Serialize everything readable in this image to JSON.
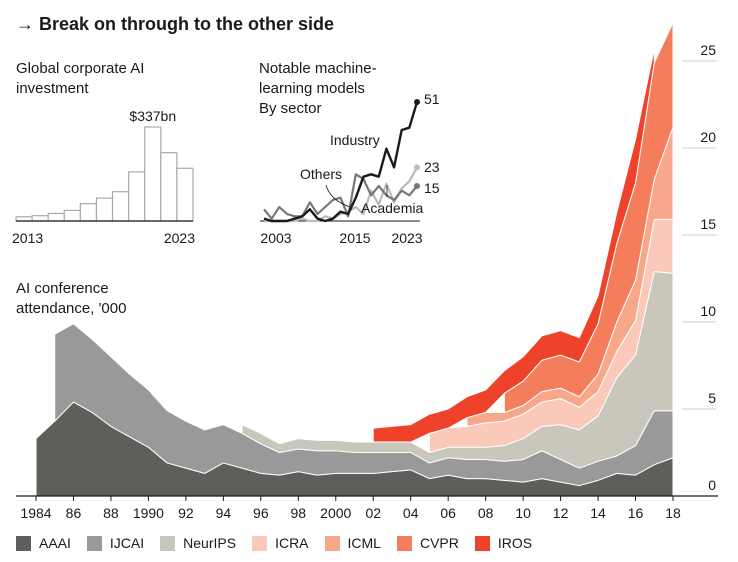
{
  "header": {
    "title": "→ Break on through to the other side"
  },
  "chart_data": [
    {
      "type": "bar",
      "title": "Global corporate AI investment",
      "categories": [
        "2013",
        "2014",
        "2015",
        "2016",
        "2017",
        "2018",
        "2019",
        "2020",
        "2021",
        "2022",
        "2023"
      ],
      "values": [
        15,
        19,
        27,
        38,
        62,
        82,
        105,
        176,
        337,
        245,
        189
      ],
      "annotation": "$337bn",
      "xtick_labels": [
        "2013",
        "2023"
      ],
      "units": "$bn"
    },
    {
      "type": "line",
      "title": "Notable machine-learning models",
      "subtitle": "By sector",
      "x": [
        2003,
        2004,
        2005,
        2006,
        2007,
        2008,
        2009,
        2010,
        2011,
        2012,
        2013,
        2014,
        2015,
        2016,
        2017,
        2018,
        2019,
        2020,
        2021,
        2022,
        2023
      ],
      "series": [
        {
          "name": "Industry",
          "color": "#1a1a1a",
          "end_label": "51",
          "values": [
            1,
            0,
            0,
            0,
            1,
            2,
            5,
            1,
            0,
            1,
            4,
            3,
            10,
            19,
            20,
            19,
            31,
            23,
            39,
            40,
            51
          ]
        },
        {
          "name": "Academia",
          "color": "#777777",
          "end_label": "15",
          "values": [
            5,
            1,
            6,
            3,
            2,
            2,
            8,
            3,
            6,
            9,
            10,
            2,
            20,
            18,
            11,
            15,
            11,
            9,
            13,
            11,
            15
          ]
        },
        {
          "name": "Others",
          "color": "#bbbbbb",
          "end_label": "23",
          "values": [
            0,
            0,
            0,
            0,
            0,
            1,
            0,
            0,
            2,
            1,
            3,
            4,
            6,
            3,
            13,
            7,
            16,
            8,
            14,
            17,
            23
          ]
        }
      ],
      "xtick_labels": [
        "2003",
        "2015",
        "2023"
      ],
      "annotations": [
        "Industry",
        "Others",
        "Academia"
      ]
    },
    {
      "type": "area",
      "title": "AI conference attendance, '000",
      "stacked": true,
      "ylim": [
        0,
        27
      ],
      "yticks": [
        0,
        5,
        10,
        15,
        20,
        25
      ],
      "x": [
        1984,
        1985,
        1986,
        1987,
        1988,
        1989,
        1990,
        1991,
        1992,
        1993,
        1994,
        1995,
        1996,
        1997,
        1998,
        1999,
        2000,
        2001,
        2002,
        2003,
        2004,
        2005,
        2006,
        2007,
        2008,
        2009,
        2010,
        2011,
        2012,
        2013,
        2014,
        2015,
        2016,
        2017,
        2018
      ],
      "xtick_labels": [
        "1984",
        "86",
        "88",
        "1990",
        "92",
        "94",
        "96",
        "98",
        "2000",
        "02",
        "04",
        "06",
        "08",
        "10",
        "12",
        "14",
        "16",
        "18"
      ],
      "series": [
        {
          "name": "AAAI",
          "color": "#5f5e5b",
          "values": [
            3.3,
            4.3,
            5.4,
            4.8,
            4.0,
            3.4,
            2.8,
            1.9,
            1.6,
            1.3,
            1.9,
            1.6,
            1.3,
            1.2,
            1.4,
            1.2,
            1.3,
            1.3,
            1.3,
            1.4,
            1.5,
            1.0,
            1.2,
            1.0,
            1.0,
            0.9,
            0.8,
            1.0,
            0.8,
            0.6,
            0.9,
            1.3,
            1.2,
            1.8,
            2.2
          ]
        },
        {
          "name": "IJCAI",
          "color": "#999999",
          "values": [
            0,
            5.0,
            4.5,
            4.2,
            4.0,
            3.6,
            3.3,
            3.0,
            2.7,
            2.5,
            2.2,
            2.0,
            1.7,
            1.3,
            1.3,
            1.4,
            1.3,
            1.2,
            1.2,
            1.1,
            1.0,
            0.9,
            1.0,
            1.1,
            1.1,
            1.1,
            1.3,
            1.6,
            1.3,
            1.0,
            1.1,
            1.0,
            1.7,
            3.1,
            2.7
          ]
        },
        {
          "name": "NeurIPS",
          "color": "#c9c7bc",
          "values": [
            0,
            0,
            0,
            0,
            0,
            0,
            0,
            0,
            0,
            0,
            0,
            0.5,
            0.6,
            0.5,
            0.6,
            0.6,
            0.6,
            0.6,
            0.6,
            0.6,
            0.6,
            0.6,
            0.6,
            0.7,
            0.7,
            0.9,
            1.2,
            1.4,
            2.0,
            2.2,
            2.6,
            4.5,
            5.2,
            8.0,
            7.9
          ]
        },
        {
          "name": "ICRA",
          "color": "#fbc9b9",
          "values": [
            0,
            0,
            0,
            0,
            0,
            0,
            0,
            0,
            0,
            0,
            0,
            0,
            0,
            0,
            0,
            0,
            0,
            0,
            0,
            0,
            0,
            1.1,
            1.1,
            1.2,
            1.4,
            1.4,
            1.4,
            1.4,
            1.5,
            1.3,
            1.4,
            1.5,
            2.0,
            3.0,
            3.1
          ]
        },
        {
          "name": "ICML",
          "color": "#f7a78a",
          "values": [
            0,
            0,
            0,
            0,
            0,
            0,
            0,
            0,
            0,
            0,
            0,
            0,
            0,
            0,
            0,
            0,
            0,
            0,
            0,
            0,
            0,
            0,
            0,
            0.5,
            0.6,
            0.5,
            0.5,
            0.6,
            0.6,
            0.6,
            1.0,
            1.7,
            2.3,
            2.3,
            5.3
          ]
        },
        {
          "name": "CVPR",
          "color": "#f47d5c",
          "values": [
            0,
            0,
            0,
            0,
            0,
            0,
            0,
            0,
            0,
            0,
            0,
            0,
            0,
            0,
            0,
            0,
            0,
            0,
            0,
            0,
            0,
            0,
            0,
            0,
            0,
            1.1,
            1.4,
            1.8,
            1.9,
            2.0,
            2.9,
            4.5,
            5.6,
            6.7,
            6.0
          ]
        },
        {
          "name": "IROS",
          "color": "#ee422b",
          "values": [
            0,
            0,
            0,
            0,
            0,
            0,
            0,
            0,
            0,
            0,
            0,
            0,
            0,
            0,
            0,
            0,
            0,
            0,
            0.8,
            0.9,
            1.0,
            1.1,
            1.1,
            1.2,
            1.3,
            1.3,
            1.4,
            1.4,
            1.4,
            1.4,
            1.6,
            1.8,
            2.5,
            0.8,
            0
          ]
        }
      ]
    }
  ]
}
